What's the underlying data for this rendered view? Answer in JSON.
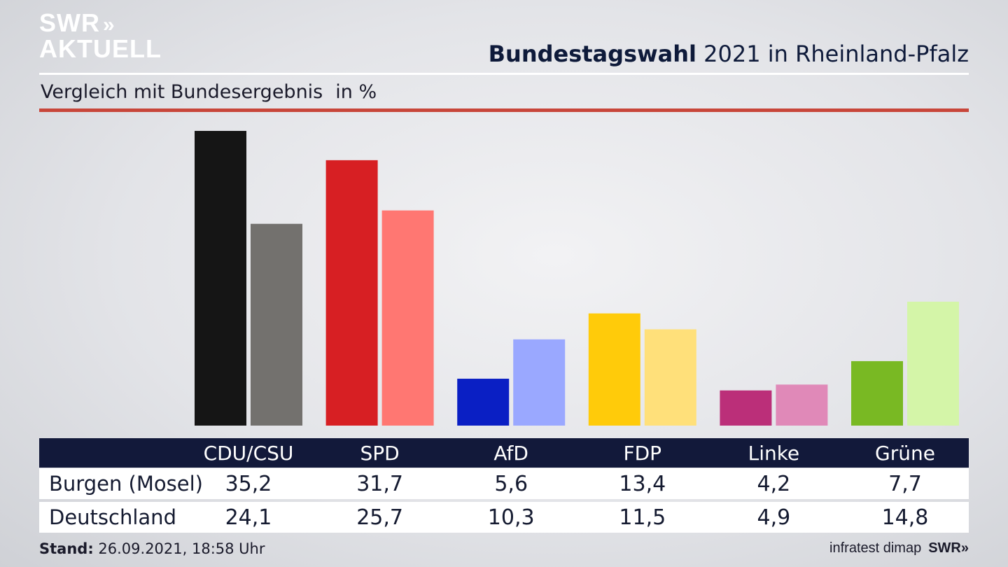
{
  "header": {
    "logo_line1": "SWR",
    "logo_chevrons": "»",
    "logo_line2": "AKTUELL",
    "title_bold": "Bundestagswahl",
    "title_rest": " 2021 in Rheinland-Pfalz",
    "subtitle": "Vergleich mit Bundesergebnis",
    "unit": "in %"
  },
  "chart_data": {
    "type": "bar",
    "title": "Bundestagswahl 2021 in Rheinland-Pfalz",
    "subtitle": "Vergleich mit Bundesergebnis",
    "ylabel": "in %",
    "ylim": [
      0,
      35.2
    ],
    "grid": false,
    "categories": [
      "CDU/CSU",
      "SPD",
      "AfD",
      "FDP",
      "Linke",
      "Grüne"
    ],
    "series": [
      {
        "name": "Burgen (Mosel)",
        "values": [
          35.2,
          31.7,
          5.6,
          13.4,
          4.2,
          7.7
        ],
        "display": [
          "35,2",
          "31,7",
          "5,6",
          "13,4",
          "4,2",
          "7,7"
        ],
        "colors": [
          "#151515",
          "#d71f23",
          "#0a1fc4",
          "#ffcb0a",
          "#bb2f79",
          "#79b923"
        ]
      },
      {
        "name": "Deutschland",
        "values": [
          24.1,
          25.7,
          10.3,
          11.5,
          4.9,
          14.8
        ],
        "display": [
          "24,1",
          "25,7",
          "10,3",
          "11,5",
          "4,9",
          "14,8"
        ],
        "colors": [
          "#73716e",
          "#ff7772",
          "#9aa8ff",
          "#ffe07a",
          "#e089b8",
          "#d4f5a8"
        ]
      }
    ]
  },
  "footer": {
    "stand_label": "Stand:",
    "stand_value": " 26.09.2021, 18:58 Uhr",
    "source": "infratest dimap",
    "brand": "SWR»"
  }
}
